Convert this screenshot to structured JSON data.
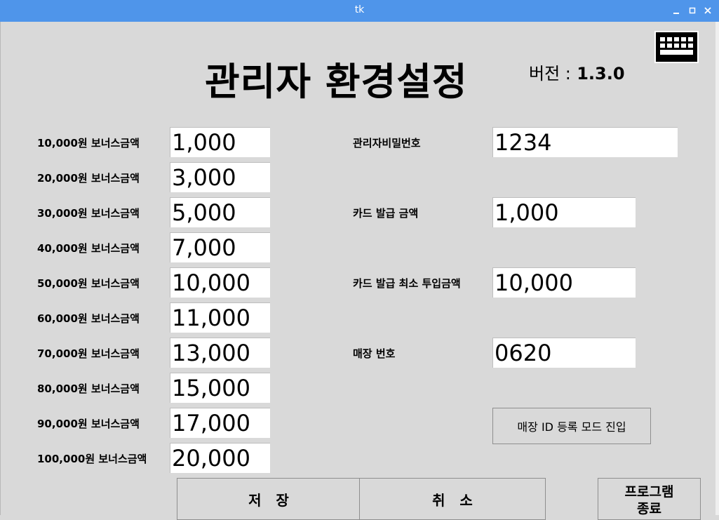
{
  "window": {
    "title": "tk"
  },
  "header": {
    "title": "관리자 환경설정",
    "version_label": "버전 :",
    "version_value": "1.3.0"
  },
  "bonus": [
    {
      "label": "10,000원 보너스금액",
      "value": "1,000"
    },
    {
      "label": "20,000원 보너스금액",
      "value": "3,000"
    },
    {
      "label": "30,000원 보너스금액",
      "value": "5,000"
    },
    {
      "label": "40,000원 보너스금액",
      "value": "7,000"
    },
    {
      "label": "50,000원 보너스금액",
      "value": "10,000"
    },
    {
      "label": "60,000원 보너스금액",
      "value": "11,000"
    },
    {
      "label": "70,000원 보너스금액",
      "value": "13,000"
    },
    {
      "label": "80,000원 보너스금액",
      "value": "15,000"
    },
    {
      "label": "90,000원 보너스금액",
      "value": "17,000"
    },
    {
      "label": "100,000원 보너스금액",
      "value": "20,000"
    }
  ],
  "settings": {
    "admin_password": {
      "label": "관리자비밀번호",
      "value": "1234"
    },
    "card_fee": {
      "label": "카드 발급 금액",
      "value": "1,000"
    },
    "card_min_input": {
      "label": "카드 발급 최소 투입금액",
      "value": "10,000"
    },
    "store_number": {
      "label": "매장 번호",
      "value": "0620"
    }
  },
  "buttons": {
    "store_id_mode": "매장 ID 등록 모드 진입",
    "save": "저   장",
    "cancel": "취   소",
    "exit_line1": "프로그램",
    "exit_line2": "종료"
  },
  "icons": {
    "keyboard": "keyboard-icon",
    "minimize": "minimize-icon",
    "maximize": "maximize-icon",
    "close": "close-icon"
  },
  "colors": {
    "titlebar": "#4f95ea",
    "background": "#d9d9d9",
    "field": "#ffffff"
  }
}
